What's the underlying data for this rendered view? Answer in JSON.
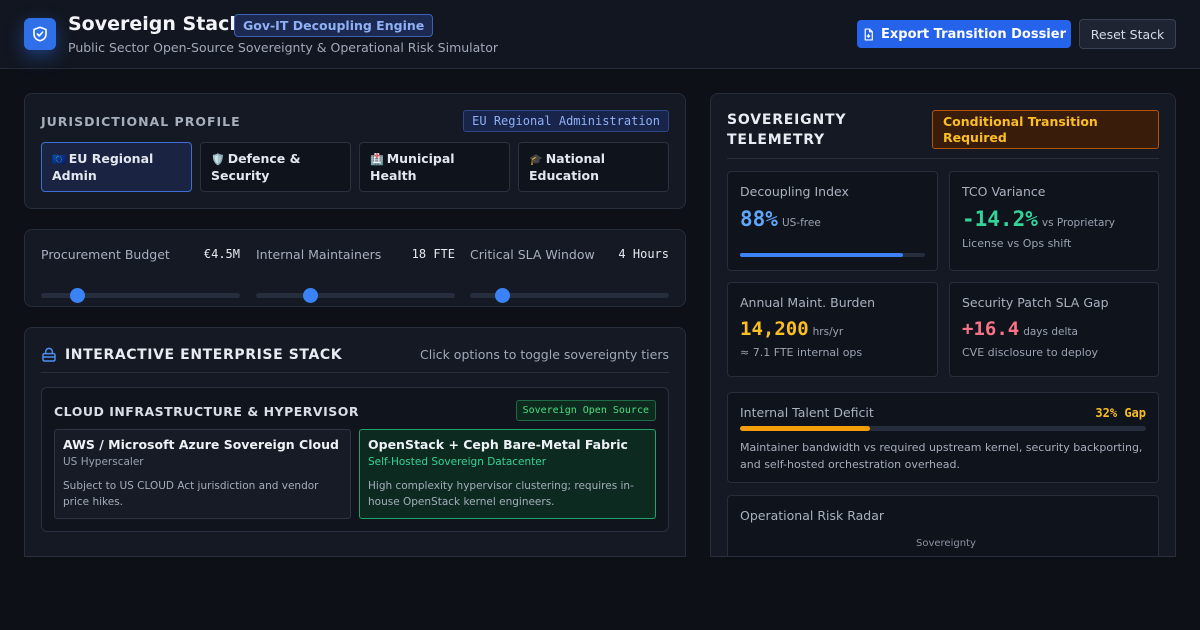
{
  "header": {
    "title": "Sovereign Stack",
    "engine_badge": "Gov-IT Decoupling Engine",
    "subtitle": "Public Sector Open-Source Sovereignty & Operational Risk Simulator",
    "export_label": "Export Transition Dossier",
    "reset_label": "Reset Stack"
  },
  "jurisdiction": {
    "title": "JURISDICTIONAL PROFILE",
    "selected_badge": "EU Regional Administration",
    "options": [
      {
        "glyph": "🇪🇺",
        "label": "EU Regional Admin",
        "active": true
      },
      {
        "glyph": "🛡️",
        "label": "Defence & Security",
        "active": false
      },
      {
        "glyph": "🏥",
        "label": "Municipal Health",
        "active": false
      },
      {
        "glyph": "🎓",
        "label": "National Education",
        "active": false
      }
    ]
  },
  "sliders": [
    {
      "name": "Procurement Budget",
      "value": "€4.5M",
      "level": 0.18
    },
    {
      "name": "Internal Maintainers",
      "value": "18 FTE",
      "level": 0.27
    },
    {
      "name": "Critical SLA Window",
      "value": "4 Hours",
      "level": 0.16
    }
  ],
  "stack": {
    "title": "INTERACTIVE ENTERPRISE STACK",
    "hint": "Click options to toggle sovereignty tiers",
    "tier": {
      "title": "CLOUD INFRASTRUCTURE & HYPERVISOR",
      "badge": "Sovereign Open Source",
      "choices": [
        {
          "title": "AWS / Microsoft Azure Sovereign Cloud",
          "sub": "US Hyperscaler",
          "desc": "Subject to US CLOUD Act jurisdiction and vendor price hikes."
        },
        {
          "title": "OpenStack + Ceph Bare-Metal Fabric",
          "sub": "Self-Hosted Sovereign Datacenter",
          "desc": "High complexity hypervisor clustering; requires in-house OpenStack kernel engineers."
        }
      ]
    }
  },
  "telemetry": {
    "title_line1": "SOVEREIGNTY",
    "title_line2": "TELEMETRY",
    "status_badge": "Conditional Transition Required",
    "decoupling": {
      "label": "Decoupling Index",
      "value": "88%",
      "unit": "US-free",
      "level": 0.88
    },
    "tco": {
      "label": "TCO Variance",
      "value": "-14.2%",
      "unit": "vs Proprietary",
      "note": "License vs Ops shift"
    },
    "maint": {
      "label": "Annual Maint. Burden",
      "value": "14,200",
      "unit": "hrs/yr",
      "note": "≈ 7.1 FTE internal ops"
    },
    "patch": {
      "label": "Security Patch SLA Gap",
      "value": "+16.4",
      "unit": "days delta",
      "note": "CVE disclosure to deploy"
    },
    "talent": {
      "label": "Internal Talent Deficit",
      "gap": "32% Gap",
      "level": 0.32,
      "desc": "Maintainer bandwidth vs required upstream kernel, security backporting, and self-hosted orchestration overhead."
    },
    "radar": {
      "label": "Operational Risk Radar",
      "axis_top": "Sovereignty"
    }
  },
  "colors": {
    "accent": "#3b82f6",
    "success": "#22a36a",
    "warning": "#f59e0b",
    "danger": "#fb7185"
  }
}
